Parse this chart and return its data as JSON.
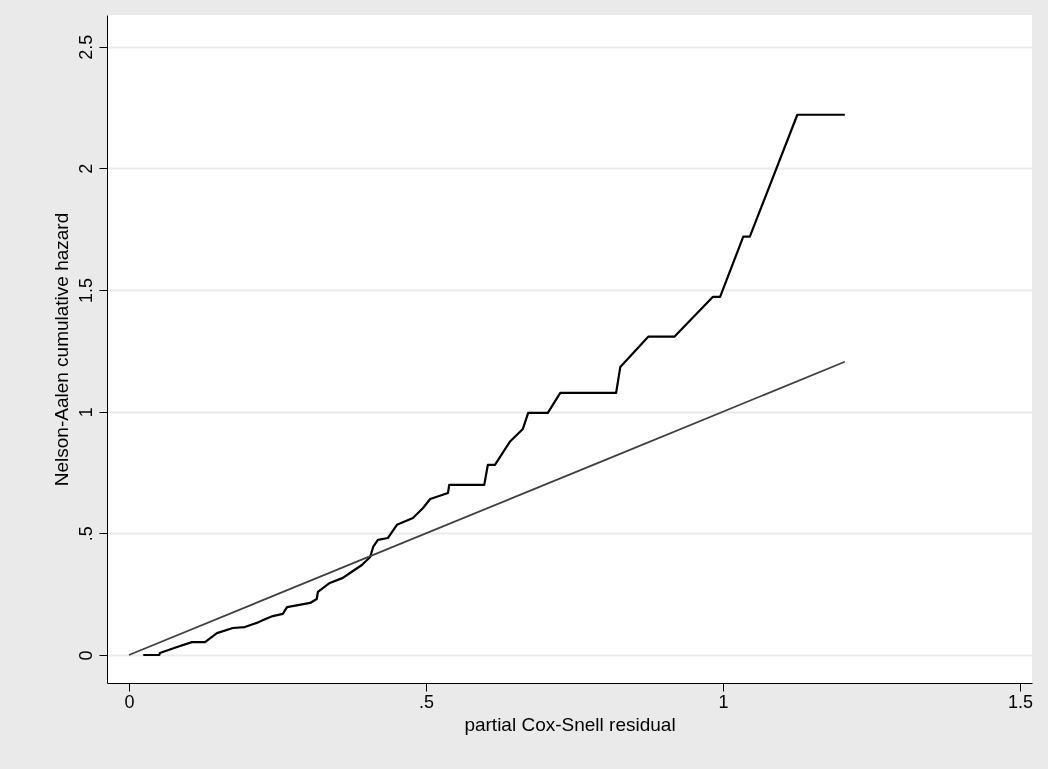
{
  "chart_data": {
    "type": "line",
    "xlabel": "partial Cox-Snell residual",
    "ylabel": "Nelson-Aalen cumulative hazard",
    "xlim": [
      -0.037,
      1.52
    ],
    "ylim": [
      -0.115,
      2.63
    ],
    "xticks": [
      0,
      {
        "value": 0.5,
        "label": ".5"
      },
      1,
      1.5
    ],
    "yticks": [
      0,
      {
        "value": 0.5,
        "label": ".5"
      },
      1,
      1.5,
      2,
      2.5
    ],
    "grid": "y",
    "series": [
      {
        "color": "#000000",
        "x": [
          0.024,
          0.051,
          0.052,
          0.081,
          0.106,
          0.128,
          0.148,
          0.175,
          0.195,
          0.215,
          0.226,
          0.242,
          0.259,
          0.266,
          0.305,
          0.316,
          0.318,
          0.338,
          0.36,
          0.372,
          0.392,
          0.406,
          0.411,
          0.419,
          0.436,
          0.451,
          0.478,
          0.495,
          0.507,
          0.537,
          0.539,
          0.598,
          0.604,
          0.616,
          0.641,
          0.663,
          0.672,
          0.705,
          0.726,
          0.82,
          0.827,
          0.874,
          0.918,
          0.983,
          0.995,
          1.034,
          1.045,
          1.125,
          1.205
        ],
        "values": [
          0,
          0,
          0.008,
          0.033,
          0.053,
          0.053,
          0.09,
          0.111,
          0.115,
          0.132,
          0.144,
          0.16,
          0.169,
          0.197,
          0.214,
          0.23,
          0.259,
          0.296,
          0.317,
          0.337,
          0.37,
          0.403,
          0.444,
          0.473,
          0.481,
          0.535,
          0.563,
          0.604,
          0.641,
          0.666,
          0.699,
          0.699,
          0.781,
          0.781,
          0.876,
          0.929,
          0.995,
          0.995,
          1.077,
          1.077,
          1.184,
          1.308,
          1.308,
          1.472,
          1.472,
          1.719,
          1.719,
          2.22,
          2.22
        ]
      },
      {
        "color": "#404040",
        "x": [
          0,
          0.4,
          0.8,
          1.205
        ],
        "values": [
          0,
          0.4,
          0.8,
          1.205
        ]
      }
    ]
  }
}
